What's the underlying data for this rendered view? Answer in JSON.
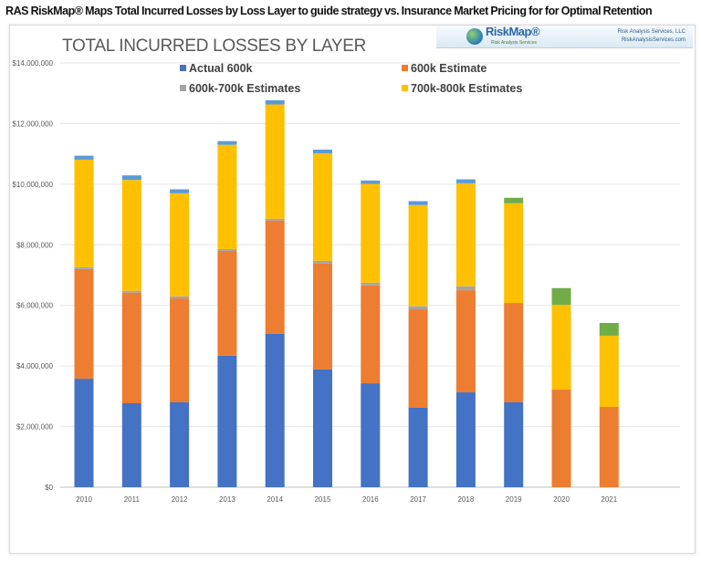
{
  "headline": "RAS RiskMap® Maps Total Incurred Losses by Loss Layer to guide strategy vs. Insurance Market Pricing for for Optimal Retention",
  "logo": {
    "brand": "RiskMap®",
    "tagline": "Risk Analysis Services",
    "company": "Risk Analysis Services, LLC",
    "website": "RiskAnalysisServices.com"
  },
  "chart_data": {
    "type": "bar",
    "stacked": true,
    "title": "TOTAL INCURRED LOSSES BY LAYER",
    "xlabel": "",
    "ylabel": "",
    "ylim": [
      0,
      14000000
    ],
    "yticks": [
      "$0",
      "$2,000,000",
      "$4,000,000",
      "$6,000,000",
      "$8,000,000",
      "$10,000,000",
      "$12,000,000",
      "$14,000,000"
    ],
    "grid": true,
    "legend_position": "top",
    "categories": [
      "2010",
      "2011",
      "2012",
      "2013",
      "2014",
      "2015",
      "2016",
      "2017",
      "2018",
      "2019",
      "2020",
      "2021"
    ],
    "series": [
      {
        "name": "Actual 600k",
        "color": "#4472c4",
        "values": [
          3580000,
          2770000,
          2800000,
          4340000,
          5060000,
          3890000,
          3430000,
          2620000,
          3130000,
          2800000,
          0,
          0
        ]
      },
      {
        "name": "600k Estimate",
        "color": "#ed7d31",
        "values": [
          3620000,
          3650000,
          3430000,
          3460000,
          3740000,
          3490000,
          3230000,
          3250000,
          3370000,
          3280000,
          3220000,
          2650000
        ]
      },
      {
        "name": "600k-700k Estimates",
        "color": "#a5a5a5",
        "values": [
          60000,
          60000,
          70000,
          60000,
          60000,
          90000,
          90000,
          100000,
          130000,
          0,
          0,
          0
        ]
      },
      {
        "name": "700k-800k Estimates",
        "color": "#ffc000",
        "values": [
          3550000,
          3660000,
          3400000,
          3440000,
          3770000,
          3550000,
          3260000,
          3340000,
          3400000,
          3290000,
          2800000,
          2350000
        ]
      },
      {
        "color": "#5b9bd5",
        "values": [
          130000,
          150000,
          130000,
          120000,
          140000,
          120000,
          110000,
          130000,
          130000,
          0,
          0,
          0
        ]
      },
      {
        "color": "#70ad47",
        "values": [
          0,
          0,
          0,
          0,
          0,
          0,
          0,
          0,
          0,
          180000,
          550000,
          420000
        ]
      }
    ]
  }
}
